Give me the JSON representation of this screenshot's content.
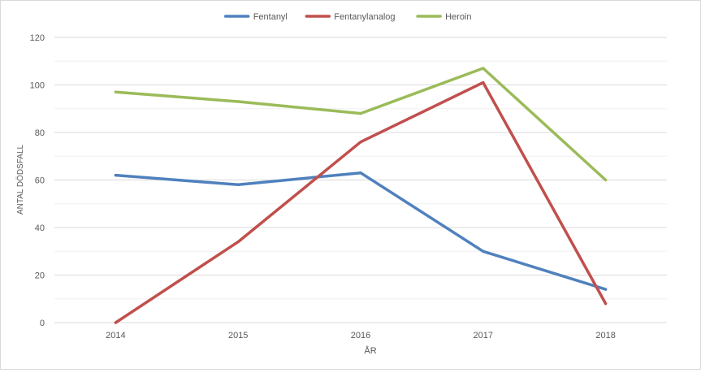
{
  "chart_data": {
    "type": "line",
    "title": "",
    "xlabel": "ÅR",
    "ylabel": "ANTAL DÖDSFALL",
    "categories": [
      "2014",
      "2015",
      "2016",
      "2017",
      "2018"
    ],
    "ylim": [
      0,
      120
    ],
    "yticks": [
      0,
      20,
      40,
      60,
      80,
      100,
      120
    ],
    "grid": true,
    "legend_position": "top",
    "series": [
      {
        "name": "Fentanyl",
        "color": "#4f81bd",
        "values": [
          62,
          58,
          63,
          30,
          14
        ]
      },
      {
        "name": "Fentanylanalog",
        "color": "#c0504d",
        "values": [
          0,
          34,
          76,
          101,
          8
        ]
      },
      {
        "name": "Heroin",
        "color": "#9bbb59",
        "values": [
          97,
          93,
          88,
          107,
          60
        ]
      }
    ]
  }
}
